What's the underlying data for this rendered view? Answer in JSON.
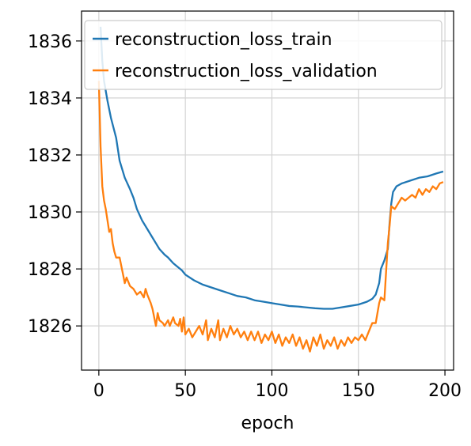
{
  "chart_data": {
    "type": "line",
    "title": "",
    "xlabel": "epoch",
    "ylabel": "",
    "xlim": [
      -10,
      205
    ],
    "ylim": [
      1824.45,
      1837.05
    ],
    "grid": true,
    "legend_position": "top-right",
    "x_ticks": [
      0,
      50,
      100,
      150,
      200
    ],
    "y_ticks": [
      1826,
      1828,
      1830,
      1832,
      1834,
      1836
    ],
    "series": [
      {
        "name": "reconstruction_loss_train",
        "color": "#1f77b4",
        "points": [
          [
            1,
            1836.5
          ],
          [
            2,
            1835.3
          ],
          [
            3,
            1834.6
          ],
          [
            5,
            1833.9
          ],
          [
            7,
            1833.3
          ],
          [
            10,
            1832.6
          ],
          [
            12,
            1831.8
          ],
          [
            15,
            1831.2
          ],
          [
            18,
            1830.8
          ],
          [
            20,
            1830.5
          ],
          [
            22,
            1830.1
          ],
          [
            25,
            1829.7
          ],
          [
            28,
            1829.4
          ],
          [
            30,
            1829.2
          ],
          [
            33,
            1828.9
          ],
          [
            35,
            1828.7
          ],
          [
            38,
            1828.5
          ],
          [
            40,
            1828.4
          ],
          [
            43,
            1828.2
          ],
          [
            45,
            1828.1
          ],
          [
            48,
            1827.95
          ],
          [
            50,
            1827.8
          ],
          [
            55,
            1827.6
          ],
          [
            60,
            1827.45
          ],
          [
            65,
            1827.35
          ],
          [
            70,
            1827.25
          ],
          [
            75,
            1827.15
          ],
          [
            80,
            1827.05
          ],
          [
            85,
            1827.0
          ],
          [
            90,
            1826.9
          ],
          [
            95,
            1826.85
          ],
          [
            100,
            1826.8
          ],
          [
            105,
            1826.75
          ],
          [
            110,
            1826.7
          ],
          [
            115,
            1826.68
          ],
          [
            120,
            1826.65
          ],
          [
            125,
            1826.62
          ],
          [
            130,
            1826.6
          ],
          [
            135,
            1826.6
          ],
          [
            140,
            1826.65
          ],
          [
            145,
            1826.7
          ],
          [
            150,
            1826.75
          ],
          [
            155,
            1826.85
          ],
          [
            158,
            1826.95
          ],
          [
            160,
            1827.1
          ],
          [
            162,
            1827.5
          ],
          [
            163,
            1828.0
          ],
          [
            165,
            1828.3
          ],
          [
            167,
            1828.7
          ],
          [
            168,
            1829.6
          ],
          [
            169,
            1830.3
          ],
          [
            170,
            1830.7
          ],
          [
            172,
            1830.9
          ],
          [
            175,
            1831.0
          ],
          [
            180,
            1831.1
          ],
          [
            185,
            1831.2
          ],
          [
            190,
            1831.25
          ],
          [
            195,
            1831.35
          ],
          [
            199,
            1831.42
          ]
        ]
      },
      {
        "name": "reconstruction_loss_validation",
        "color": "#ff7f0e",
        "points": [
          [
            0,
            1834.6
          ],
          [
            1,
            1832.3
          ],
          [
            2,
            1830.9
          ],
          [
            3,
            1830.4
          ],
          [
            4,
            1830.1
          ],
          [
            5,
            1829.7
          ],
          [
            6,
            1829.3
          ],
          [
            7,
            1829.4
          ],
          [
            8,
            1828.9
          ],
          [
            9,
            1828.6
          ],
          [
            10,
            1828.4
          ],
          [
            12,
            1828.4
          ],
          [
            14,
            1827.8
          ],
          [
            15,
            1827.5
          ],
          [
            16,
            1827.7
          ],
          [
            18,
            1827.4
          ],
          [
            20,
            1827.3
          ],
          [
            22,
            1827.1
          ],
          [
            24,
            1827.2
          ],
          [
            26,
            1827.0
          ],
          [
            27,
            1827.3
          ],
          [
            28,
            1827.1
          ],
          [
            30,
            1826.8
          ],
          [
            31,
            1826.6
          ],
          [
            32,
            1826.3
          ],
          [
            33,
            1826.0
          ],
          [
            34,
            1826.45
          ],
          [
            35,
            1826.2
          ],
          [
            37,
            1826.1
          ],
          [
            38,
            1826.0
          ],
          [
            40,
            1826.2
          ],
          [
            41,
            1826.0
          ],
          [
            43,
            1826.3
          ],
          [
            44,
            1826.1
          ],
          [
            46,
            1826.0
          ],
          [
            47,
            1826.25
          ],
          [
            48,
            1825.8
          ],
          [
            49,
            1826.3
          ],
          [
            50,
            1825.7
          ],
          [
            52,
            1825.9
          ],
          [
            54,
            1825.6
          ],
          [
            56,
            1825.8
          ],
          [
            58,
            1826.0
          ],
          [
            60,
            1825.7
          ],
          [
            62,
            1826.2
          ],
          [
            63,
            1825.5
          ],
          [
            65,
            1825.9
          ],
          [
            67,
            1825.6
          ],
          [
            69,
            1826.2
          ],
          [
            70,
            1825.5
          ],
          [
            72,
            1825.9
          ],
          [
            74,
            1825.6
          ],
          [
            76,
            1826.0
          ],
          [
            78,
            1825.7
          ],
          [
            80,
            1825.9
          ],
          [
            82,
            1825.6
          ],
          [
            84,
            1825.8
          ],
          [
            86,
            1825.5
          ],
          [
            88,
            1825.8
          ],
          [
            90,
            1825.5
          ],
          [
            92,
            1825.8
          ],
          [
            94,
            1825.4
          ],
          [
            96,
            1825.7
          ],
          [
            98,
            1825.5
          ],
          [
            100,
            1825.8
          ],
          [
            102,
            1825.4
          ],
          [
            104,
            1825.7
          ],
          [
            106,
            1825.3
          ],
          [
            108,
            1825.6
          ],
          [
            110,
            1825.4
          ],
          [
            112,
            1825.7
          ],
          [
            114,
            1825.3
          ],
          [
            116,
            1825.6
          ],
          [
            118,
            1825.2
          ],
          [
            120,
            1825.5
          ],
          [
            122,
            1825.1
          ],
          [
            124,
            1825.6
          ],
          [
            126,
            1825.3
          ],
          [
            128,
            1825.7
          ],
          [
            130,
            1825.2
          ],
          [
            132,
            1825.5
          ],
          [
            134,
            1825.3
          ],
          [
            136,
            1825.6
          ],
          [
            138,
            1825.2
          ],
          [
            140,
            1825.5
          ],
          [
            142,
            1825.3
          ],
          [
            144,
            1825.6
          ],
          [
            146,
            1825.4
          ],
          [
            148,
            1825.6
          ],
          [
            150,
            1825.5
          ],
          [
            152,
            1825.7
          ],
          [
            154,
            1825.5
          ],
          [
            156,
            1825.8
          ],
          [
            158,
            1826.1
          ],
          [
            160,
            1826.1
          ],
          [
            162,
            1826.8
          ],
          [
            163,
            1827.0
          ],
          [
            165,
            1826.9
          ],
          [
            166,
            1827.9
          ],
          [
            167,
            1828.9
          ],
          [
            168,
            1829.5
          ],
          [
            169,
            1830.2
          ],
          [
            171,
            1830.1
          ],
          [
            173,
            1830.3
          ],
          [
            175,
            1830.5
          ],
          [
            177,
            1830.4
          ],
          [
            179,
            1830.5
          ],
          [
            181,
            1830.6
          ],
          [
            183,
            1830.5
          ],
          [
            185,
            1830.8
          ],
          [
            187,
            1830.6
          ],
          [
            189,
            1830.8
          ],
          [
            191,
            1830.7
          ],
          [
            193,
            1830.9
          ],
          [
            195,
            1830.8
          ],
          [
            197,
            1831.0
          ],
          [
            199,
            1831.05
          ]
        ]
      }
    ]
  }
}
